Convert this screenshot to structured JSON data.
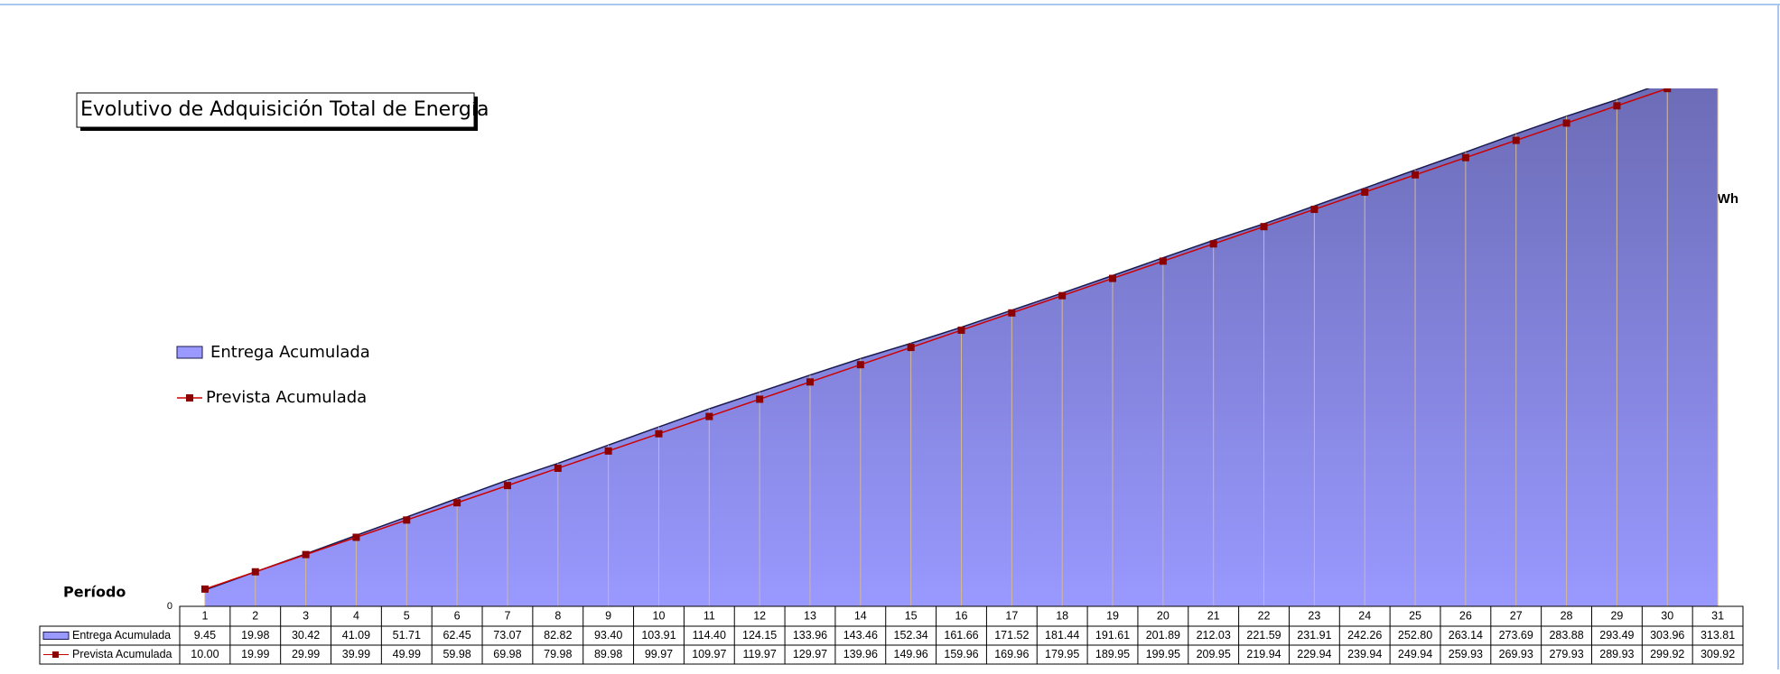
{
  "chart_data": {
    "type": "area-line",
    "title": "Evolutivo de Adquisición Total de Energía",
    "x_label": "Período",
    "y_label": "GWh",
    "categories": [
      "1",
      "2",
      "3",
      "4",
      "5",
      "6",
      "7",
      "8",
      "9",
      "10",
      "11",
      "12",
      "13",
      "14",
      "15",
      "16",
      "17",
      "18",
      "19",
      "20",
      "21",
      "22",
      "23",
      "24",
      "25",
      "26",
      "27",
      "28",
      "29",
      "30",
      "31"
    ],
    "ylim": [
      0,
      300
    ],
    "yticks": [
      0
    ],
    "legend": "left",
    "series": [
      {
        "name": "Entrega Acumulada",
        "kind": "area",
        "color": "#9999ff",
        "values": [
          9.45,
          19.98,
          30.42,
          41.09,
          51.71,
          62.45,
          73.07,
          82.82,
          93.4,
          103.91,
          114.4,
          124.15,
          133.96,
          143.46,
          152.34,
          161.66,
          171.52,
          181.44,
          191.61,
          201.89,
          212.03,
          221.59,
          231.91,
          242.26,
          252.8,
          263.14,
          273.69,
          283.88,
          293.49,
          303.96,
          313.81
        ],
        "value_labels": [
          "9.45",
          "19.98",
          "30.42",
          "41.09",
          "51.71",
          "62.45",
          "73.07",
          "82.82",
          "93.40",
          "103.91",
          "114.40",
          "124.15",
          "133.96",
          "143.46",
          "152.34",
          "161.66",
          "171.52",
          "181.44",
          "191.61",
          "201.89",
          "212.03",
          "221.59",
          "231.91",
          "242.26",
          "252.80",
          "263.14",
          "273.69",
          "283.88",
          "293.49",
          "303.96",
          "313.81"
        ]
      },
      {
        "name": "Prevista Acumulada",
        "kind": "line",
        "color": "#cc0000",
        "values": [
          10,
          19.99,
          29.99,
          39.99,
          49.99,
          59.98,
          69.98,
          79.98,
          89.98,
          99.97,
          109.97,
          119.97,
          129.97,
          139.96,
          149.96,
          159.96,
          169.96,
          179.95,
          189.95,
          199.95,
          209.95,
          219.94,
          229.94,
          239.94,
          249.94,
          259.93,
          269.93,
          279.93,
          289.93,
          299.92,
          309.92
        ],
        "value_labels": [
          "10.00",
          "19.99",
          "29.99",
          "39.99",
          "49.99",
          "59.98",
          "69.98",
          "79.98",
          "89.98",
          "99.97",
          "109.97",
          "119.97",
          "129.97",
          "139.96",
          "149.96",
          "159.96",
          "169.96",
          "179.95",
          "189.95",
          "199.95",
          "209.95",
          "219.94",
          "229.94",
          "239.94",
          "249.94",
          "259.93",
          "269.93",
          "279.93",
          "289.93",
          "299.92",
          "309.92"
        ]
      }
    ]
  }
}
